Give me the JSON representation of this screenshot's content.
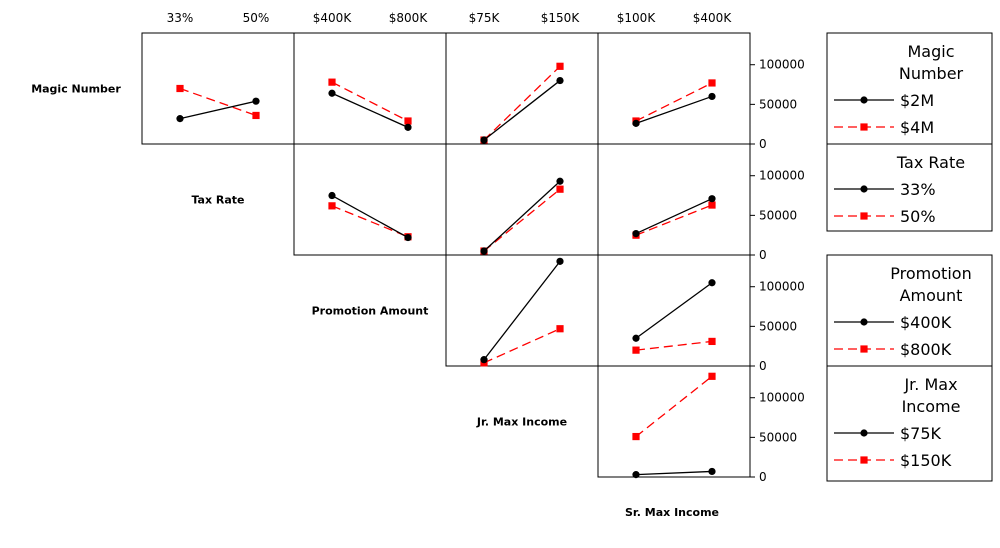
{
  "chart_data": {
    "type": "line",
    "title": "",
    "xlabel": "Sr. Max Income",
    "ylabel": "",
    "ylim": [
      0,
      140000
    ],
    "y_ticks": [
      0,
      50000,
      100000
    ],
    "y_tick_labels": [
      "0",
      "50000",
      "100000"
    ],
    "factors": [
      {
        "name": "Magic Number",
        "levels": [
          "$2M",
          "$4M"
        ]
      },
      {
        "name": "Tax Rate",
        "levels": [
          "33%",
          "50%"
        ]
      },
      {
        "name": "Promotion Amount",
        "levels": [
          "$400K",
          "$800K"
        ]
      },
      {
        "name": "Jr. Max Income",
        "levels": [
          "$75K",
          "$150K"
        ]
      }
    ],
    "column_factors": [
      {
        "name": "Tax Rate",
        "levels": [
          "33%",
          "50%"
        ]
      },
      {
        "name": "Promotion Amount",
        "levels": [
          "$400K",
          "$800K"
        ]
      },
      {
        "name": "Jr. Max Income",
        "levels": [
          "$75K",
          "$150K"
        ]
      },
      {
        "name": "Sr. Max Income",
        "levels": [
          "$100K",
          "$400K"
        ]
      }
    ],
    "panels": [
      {
        "row": 0,
        "col": 0,
        "series": [
          {
            "name": "$2M",
            "values": [
              32000,
              54000
            ]
          },
          {
            "name": "$4M",
            "values": [
              70000,
              36000
            ]
          }
        ]
      },
      {
        "row": 0,
        "col": 1,
        "series": [
          {
            "name": "$2M",
            "values": [
              64000,
              21000
            ]
          },
          {
            "name": "$4M",
            "values": [
              78000,
              29000
            ]
          }
        ]
      },
      {
        "row": 0,
        "col": 2,
        "series": [
          {
            "name": "$2M",
            "values": [
              5000,
              80000
            ]
          },
          {
            "name": "$4M",
            "values": [
              5000,
              98000
            ]
          }
        ]
      },
      {
        "row": 0,
        "col": 3,
        "series": [
          {
            "name": "$2M",
            "values": [
              26000,
              60000
            ]
          },
          {
            "name": "$4M",
            "values": [
              29000,
              77000
            ]
          }
        ]
      },
      {
        "row": 1,
        "col": 1,
        "series": [
          {
            "name": "33%",
            "values": [
              75000,
              22000
            ]
          },
          {
            "name": "50%",
            "values": [
              62000,
              23000
            ]
          }
        ]
      },
      {
        "row": 1,
        "col": 2,
        "series": [
          {
            "name": "33%",
            "values": [
              5000,
              93000
            ]
          },
          {
            "name": "50%",
            "values": [
              5000,
              83000
            ]
          }
        ]
      },
      {
        "row": 1,
        "col": 3,
        "series": [
          {
            "name": "33%",
            "values": [
              27000,
              71000
            ]
          },
          {
            "name": "50%",
            "values": [
              25000,
              63000
            ]
          }
        ]
      },
      {
        "row": 2,
        "col": 2,
        "series": [
          {
            "name": "$400K",
            "values": [
              8000,
              132000
            ]
          },
          {
            "name": "$800K",
            "values": [
              4000,
              47000
            ]
          }
        ]
      },
      {
        "row": 2,
        "col": 3,
        "series": [
          {
            "name": "$400K",
            "values": [
              35000,
              105000
            ]
          },
          {
            "name": "$800K",
            "values": [
              20000,
              31000
            ]
          }
        ]
      },
      {
        "row": 3,
        "col": 3,
        "series": [
          {
            "name": "$75K",
            "values": [
              3000,
              7000
            ]
          },
          {
            "name": "$150K",
            "values": [
              51000,
              127000
            ]
          }
        ]
      }
    ],
    "legends": [
      {
        "title": "Magic Number",
        "items": [
          "$2M",
          "$4M"
        ]
      },
      {
        "title": "Tax Rate",
        "items": [
          "33%",
          "50%"
        ]
      },
      {
        "title": "Promotion Amount",
        "items": [
          "$400K",
          "$800K"
        ]
      },
      {
        "title": "Jr. Max Income",
        "items": [
          "$75K",
          "$150K"
        ]
      }
    ],
    "series_styles": [
      {
        "color": "#000000",
        "marker": "circle",
        "line": "solid"
      },
      {
        "color": "#ff0000",
        "marker": "square",
        "line": "dashed"
      }
    ],
    "grid": false,
    "legend_position": "right"
  }
}
